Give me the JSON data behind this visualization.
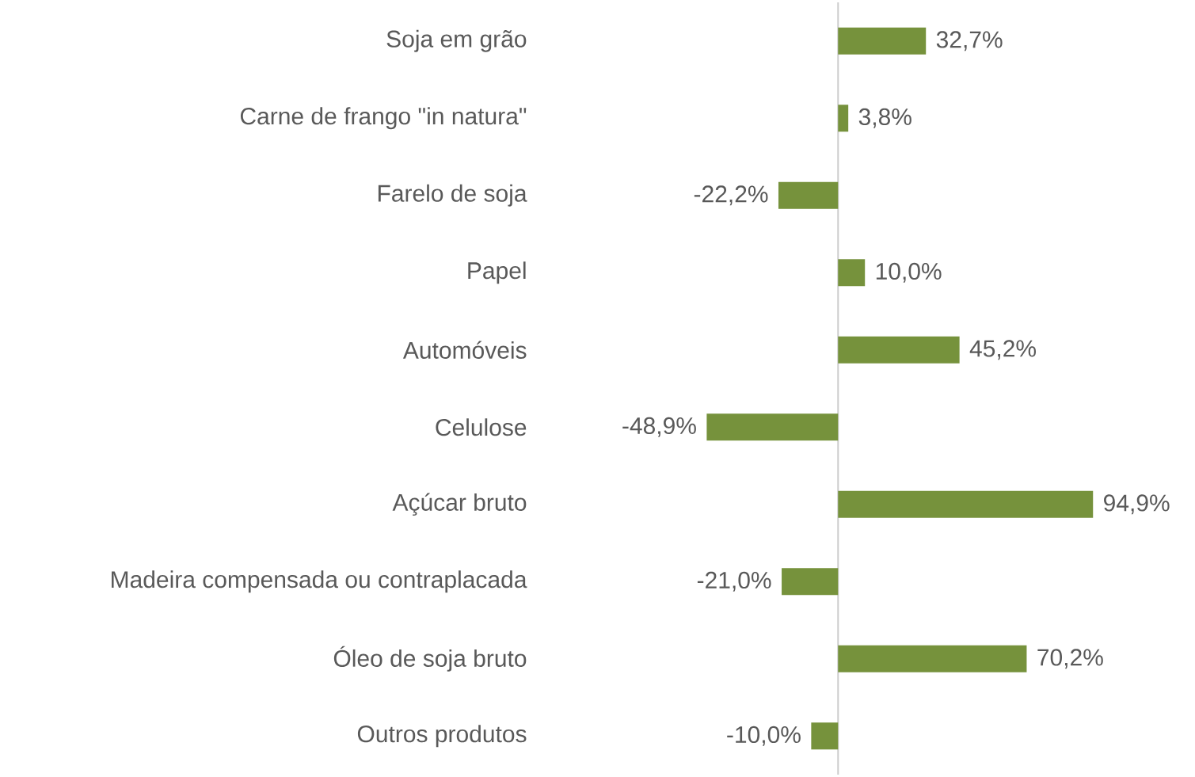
{
  "chart_data": {
    "type": "bar",
    "orientation": "horizontal",
    "color": "#76923c",
    "categories": [
      "Soja em grão",
      "Carne de frango \"in natura\"",
      "Farelo de soja",
      "Papel",
      "Automóveis",
      "Celulose",
      "Açúcar bruto",
      "Madeira compensada ou contraplacada",
      "Óleo de soja bruto",
      "Outros produtos"
    ],
    "values": [
      32.7,
      3.8,
      -22.2,
      10.0,
      45.2,
      -48.9,
      94.9,
      -21.0,
      70.2,
      -10.0
    ],
    "value_labels": [
      "32,7%",
      "3,8%",
      "-22,2%",
      "10,0%",
      "45,2%",
      "-48,9%",
      "94,9%",
      "-21,0%",
      "70,2%",
      "-10,0%"
    ]
  }
}
